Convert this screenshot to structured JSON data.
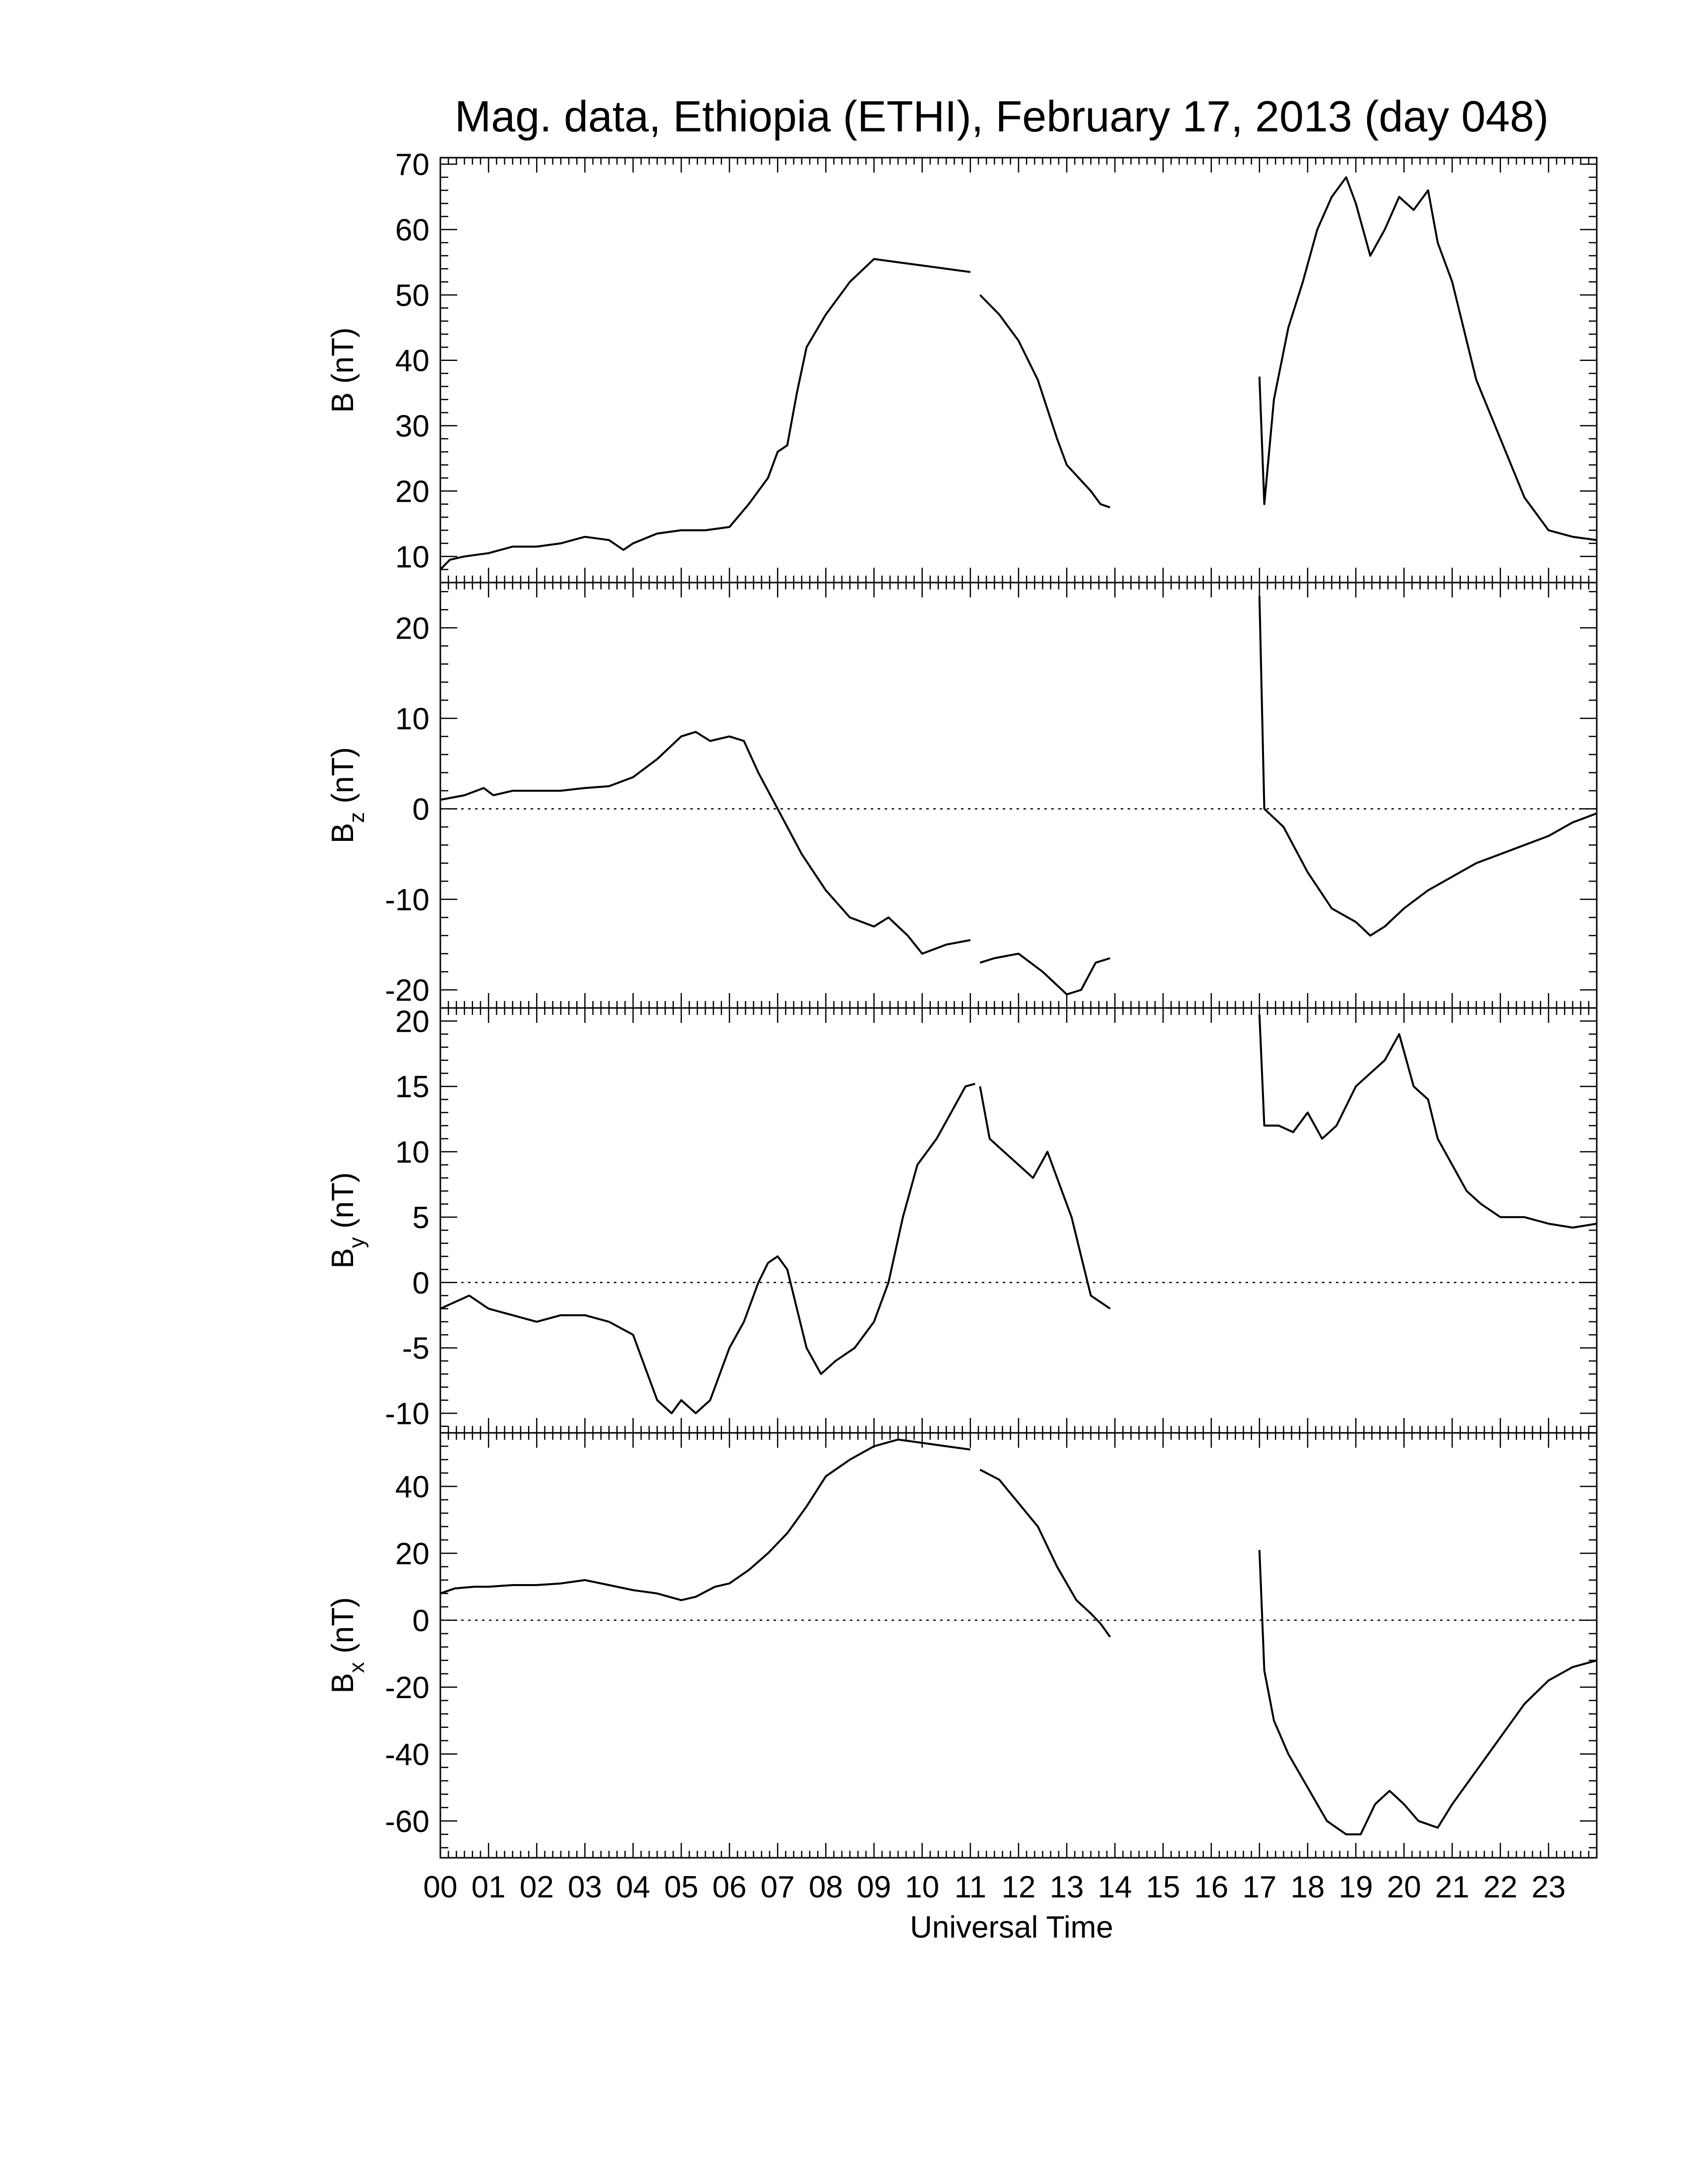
{
  "chart_data": {
    "type": "line",
    "title": "Mag. data, Ethiopia (ETHI), February 17, 2013 (day 048)",
    "xlabel": "Universal Time",
    "xlim": [
      0,
      24
    ],
    "x_ticks": [
      "00",
      "01",
      "02",
      "03",
      "04",
      "05",
      "06",
      "07",
      "08",
      "09",
      "10",
      "11",
      "12",
      "13",
      "14",
      "15",
      "16",
      "17",
      "18",
      "19",
      "20",
      "21",
      "22",
      "23"
    ],
    "line_color": "#000000",
    "panels": [
      {
        "name": "B",
        "ylabel": "B (nT)",
        "ylim": [
          6,
          71
        ],
        "yticks": [
          10,
          20,
          30,
          40,
          50,
          60,
          70
        ],
        "zero_line": false,
        "segments": [
          [
            [
              0,
              8
            ],
            [
              0.2,
              9.5
            ],
            [
              0.5,
              10
            ],
            [
              1,
              10.5
            ],
            [
              1.5,
              11.5
            ],
            [
              2,
              11.5
            ],
            [
              2.5,
              12
            ],
            [
              3,
              13
            ],
            [
              3.5,
              12.5
            ],
            [
              3.8,
              11
            ],
            [
              4,
              12
            ],
            [
              4.5,
              13.5
            ],
            [
              5,
              14
            ],
            [
              5.5,
              14
            ],
            [
              6,
              14.5
            ],
            [
              6.4,
              18
            ],
            [
              6.8,
              22
            ],
            [
              7.0,
              26
            ],
            [
              7.2,
              27
            ],
            [
              7.4,
              35
            ],
            [
              7.6,
              42
            ],
            [
              8,
              47
            ],
            [
              8.5,
              52
            ],
            [
              9,
              55.5
            ],
            [
              9.5,
              55
            ],
            [
              10,
              54.5
            ],
            [
              10.5,
              54
            ],
            [
              11,
              53.5
            ]
          ],
          [
            [
              11.2,
              50
            ],
            [
              11.6,
              47
            ],
            [
              12,
              43
            ],
            [
              12.4,
              37
            ],
            [
              12.8,
              28
            ],
            [
              13,
              24
            ],
            [
              13.5,
              20
            ],
            [
              13.7,
              18
            ],
            [
              13.9,
              17.5
            ]
          ],
          [
            [
              17.0,
              37.5
            ],
            [
              17.1,
              18
            ],
            [
              17.3,
              34
            ],
            [
              17.6,
              45
            ],
            [
              17.9,
              52
            ],
            [
              18.2,
              60
            ],
            [
              18.5,
              65
            ],
            [
              18.8,
              68
            ],
            [
              19.0,
              64
            ],
            [
              19.3,
              56
            ],
            [
              19.6,
              60
            ],
            [
              19.9,
              65
            ],
            [
              20.2,
              63
            ],
            [
              20.5,
              66
            ],
            [
              20.7,
              58
            ],
            [
              21,
              52
            ],
            [
              21.5,
              37
            ],
            [
              22,
              28
            ],
            [
              22.5,
              19
            ],
            [
              23,
              14
            ],
            [
              23.5,
              13
            ],
            [
              24,
              12.5
            ]
          ]
        ]
      },
      {
        "name": "Bz",
        "ylabel": "B_z (nT)",
        "ylabel_main": "B",
        "ylabel_sub": "z",
        "ylabel_unit": "(nT)",
        "ylim": [
          -22,
          25
        ],
        "yticks": [
          -20,
          -10,
          0,
          10,
          20
        ],
        "zero_line": true,
        "segments": [
          [
            [
              0,
              1
            ],
            [
              0.5,
              1.5
            ],
            [
              0.9,
              2.3
            ],
            [
              1.1,
              1.5
            ],
            [
              1.5,
              2
            ],
            [
              2,
              2
            ],
            [
              2.5,
              2
            ],
            [
              3,
              2.3
            ],
            [
              3.5,
              2.5
            ],
            [
              4,
              3.5
            ],
            [
              4.5,
              5.5
            ],
            [
              5,
              8
            ],
            [
              5.3,
              8.5
            ],
            [
              5.6,
              7.5
            ],
            [
              6,
              8
            ],
            [
              6.3,
              7.5
            ],
            [
              6.6,
              4
            ],
            [
              7,
              0
            ],
            [
              7.5,
              -5
            ],
            [
              8,
              -9
            ],
            [
              8.5,
              -12
            ],
            [
              9,
              -13
            ],
            [
              9.3,
              -12
            ],
            [
              9.7,
              -14
            ],
            [
              10,
              -16
            ],
            [
              10.5,
              -15
            ],
            [
              11,
              -14.5
            ]
          ],
          [
            [
              11.2,
              -17
            ],
            [
              11.5,
              -16.5
            ],
            [
              12,
              -16
            ],
            [
              12.5,
              -18
            ],
            [
              13,
              -20.5
            ],
            [
              13.3,
              -20
            ],
            [
              13.6,
              -17
            ],
            [
              13.9,
              -16.5
            ]
          ],
          [
            [
              17.0,
              23.5
            ],
            [
              17.1,
              0
            ],
            [
              17.3,
              -1
            ],
            [
              17.5,
              -2
            ],
            [
              18,
              -7
            ],
            [
              18.5,
              -11
            ],
            [
              19,
              -12.5
            ],
            [
              19.3,
              -14
            ],
            [
              19.6,
              -13
            ],
            [
              20,
              -11
            ],
            [
              20.5,
              -9
            ],
            [
              21,
              -7.5
            ],
            [
              21.5,
              -6
            ],
            [
              22,
              -5
            ],
            [
              22.5,
              -4
            ],
            [
              23,
              -3
            ],
            [
              23.5,
              -1.5
            ],
            [
              24,
              -0.5
            ]
          ]
        ]
      },
      {
        "name": "By",
        "ylabel": "B_y (nT)",
        "ylabel_main": "B",
        "ylabel_sub": "y",
        "ylabel_unit": "(nT)",
        "ylim": [
          -11.5,
          21
        ],
        "yticks": [
          -10,
          -5,
          0,
          5,
          10,
          15,
          20
        ],
        "zero_line": true,
        "segments": [
          [
            [
              0,
              -2
            ],
            [
              0.3,
              -1.5
            ],
            [
              0.6,
              -1
            ],
            [
              1,
              -2
            ],
            [
              1.5,
              -2.5
            ],
            [
              2,
              -3
            ],
            [
              2.5,
              -2.5
            ],
            [
              3,
              -2.5
            ],
            [
              3.5,
              -3
            ],
            [
              4,
              -4
            ],
            [
              4.2,
              -6
            ],
            [
              4.5,
              -9
            ],
            [
              4.8,
              -10
            ],
            [
              5,
              -9
            ],
            [
              5.3,
              -10
            ],
            [
              5.6,
              -9
            ],
            [
              6,
              -5
            ],
            [
              6.3,
              -3
            ],
            [
              6.6,
              0
            ],
            [
              6.8,
              1.5
            ],
            [
              7,
              2
            ],
            [
              7.2,
              1
            ],
            [
              7.4,
              -2
            ],
            [
              7.6,
              -5
            ],
            [
              7.9,
              -7
            ],
            [
              8.2,
              -6
            ],
            [
              8.6,
              -5
            ],
            [
              9,
              -3
            ],
            [
              9.3,
              0
            ],
            [
              9.6,
              5
            ],
            [
              9.9,
              9
            ],
            [
              10.3,
              11
            ],
            [
              10.6,
              13
            ],
            [
              10.9,
              15
            ],
            [
              11.1,
              15.2
            ]
          ],
          [
            [
              11.2,
              15
            ],
            [
              11.4,
              11
            ],
            [
              11.7,
              10
            ],
            [
              12,
              9
            ],
            [
              12.3,
              8
            ],
            [
              12.6,
              10
            ],
            [
              12.9,
              7
            ],
            [
              13.1,
              5
            ],
            [
              13.3,
              2
            ],
            [
              13.5,
              -1
            ],
            [
              13.7,
              -1.5
            ],
            [
              13.9,
              -2
            ]
          ],
          [
            [
              17.0,
              20.5
            ],
            [
              17.1,
              12
            ],
            [
              17.4,
              12
            ],
            [
              17.7,
              11.5
            ],
            [
              18,
              13
            ],
            [
              18.3,
              11
            ],
            [
              18.6,
              12
            ],
            [
              19,
              15
            ],
            [
              19.3,
              16
            ],
            [
              19.6,
              17
            ],
            [
              19.9,
              19
            ],
            [
              20.2,
              15
            ],
            [
              20.5,
              14
            ],
            [
              20.7,
              11
            ],
            [
              21,
              9
            ],
            [
              21.3,
              7
            ],
            [
              21.6,
              6
            ],
            [
              22,
              5
            ],
            [
              22.5,
              5
            ],
            [
              23,
              4.5
            ],
            [
              23.5,
              4.2
            ],
            [
              24,
              4.5
            ]
          ]
        ]
      },
      {
        "name": "Bx",
        "ylabel": "B_x (nT)",
        "ylabel_main": "B",
        "ylabel_sub": "x",
        "ylabel_unit": "(nT)",
        "ylim": [
          -71,
          56
        ],
        "yticks": [
          -60,
          -40,
          -20,
          0,
          20,
          40
        ],
        "zero_line": true,
        "segments": [
          [
            [
              0,
              8
            ],
            [
              0.3,
              9.5
            ],
            [
              0.7,
              10
            ],
            [
              1,
              10
            ],
            [
              1.5,
              10.5
            ],
            [
              2,
              10.5
            ],
            [
              2.5,
              11
            ],
            [
              3,
              12
            ],
            [
              3.5,
              10.5
            ],
            [
              4,
              9
            ],
            [
              4.5,
              8
            ],
            [
              5,
              6
            ],
            [
              5.3,
              7
            ],
            [
              5.7,
              10
            ],
            [
              6,
              11
            ],
            [
              6.4,
              15
            ],
            [
              6.8,
              20
            ],
            [
              7.2,
              26
            ],
            [
              7.6,
              34
            ],
            [
              8,
              43
            ],
            [
              8.5,
              48
            ],
            [
              9,
              52
            ],
            [
              9.5,
              54
            ],
            [
              10,
              53
            ],
            [
              10.5,
              52
            ],
            [
              11,
              51
            ]
          ],
          [
            [
              11.2,
              45
            ],
            [
              11.6,
              42
            ],
            [
              12,
              35
            ],
            [
              12.4,
              28
            ],
            [
              12.8,
              16
            ],
            [
              13.2,
              6
            ],
            [
              13.5,
              2
            ],
            [
              13.7,
              -1
            ],
            [
              13.9,
              -5
            ]
          ],
          [
            [
              17.0,
              21
            ],
            [
              17.1,
              -15
            ],
            [
              17.3,
              -30
            ],
            [
              17.6,
              -40
            ],
            [
              18,
              -50
            ],
            [
              18.4,
              -60
            ],
            [
              18.8,
              -64
            ],
            [
              19.1,
              -64
            ],
            [
              19.4,
              -55
            ],
            [
              19.7,
              -51
            ],
            [
              20,
              -55
            ],
            [
              20.3,
              -60
            ],
            [
              20.7,
              -62
            ],
            [
              21,
              -55
            ],
            [
              21.5,
              -45
            ],
            [
              22,
              -35
            ],
            [
              22.5,
              -25
            ],
            [
              23,
              -18
            ],
            [
              23.5,
              -14
            ],
            [
              24,
              -12
            ]
          ]
        ]
      }
    ]
  }
}
